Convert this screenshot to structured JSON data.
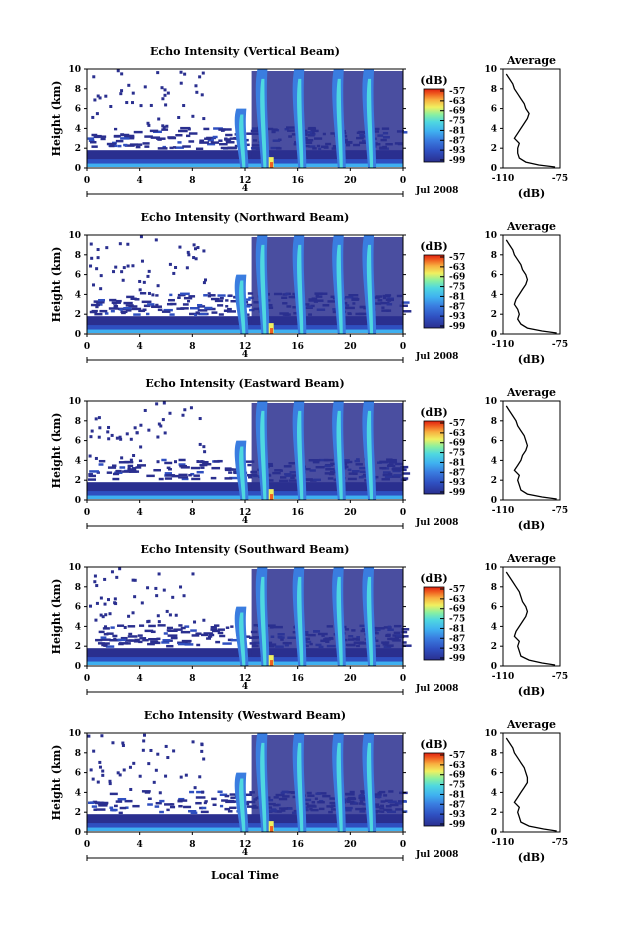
{
  "figure": {
    "xlabel": "Local Time",
    "colorbar_label": "(dB)",
    "colorbar_ticks": [
      "-57",
      "-63",
      "-69",
      "-75",
      "-81",
      "-87",
      "-93",
      "-99"
    ],
    "date_label": "Jul 2008",
    "date_axis_tick": "4",
    "profile_title": "Average",
    "profile_xlabel": "(dB)"
  },
  "chart_data": [
    {
      "type": "heatmap",
      "title": "Echo Intensity (Vertical Beam)",
      "ylabel": "Height (km)",
      "x_ticks": [
        "0",
        "4",
        "8",
        "12",
        "16",
        "20",
        "0"
      ],
      "y_ticks": [
        "0",
        "2",
        "4",
        "6",
        "8",
        "10"
      ],
      "xlim": [
        0,
        24
      ],
      "ylim": [
        0,
        10
      ],
      "colorscale": [
        "#2a2f8f",
        "#2f4fc0",
        "#3a7de0",
        "#3fb0f0",
        "#4fd8e0",
        "#8af0a0",
        "#f0f060",
        "#f8b040",
        "#f06020",
        "#e02010"
      ],
      "profile": {
        "title": "Average",
        "xlim": [
          -110,
          -75
        ],
        "xticks": [
          "-110",
          "-75"
        ],
        "ylim": [
          0,
          10
        ],
        "yticks": [
          "0",
          "2",
          "4",
          "6",
          "8",
          "10"
        ],
        "heights": [
          0.1,
          0.3,
          0.6,
          1,
          1.5,
          2,
          2.5,
          3,
          3.5,
          4,
          4.5,
          5,
          5.5,
          6,
          6.5,
          7,
          7.5,
          8,
          8.5,
          9,
          9.5
        ],
        "values": [
          -78,
          -88,
          -96,
          -100,
          -101,
          -101,
          -100,
          -103,
          -101,
          -99,
          -97,
          -95,
          -94,
          -96,
          -97,
          -99,
          -101,
          -103,
          -104,
          -106,
          -108
        ]
      }
    },
    {
      "type": "heatmap",
      "title": "Echo Intensity (Northward Beam)",
      "ylabel": "Height (km)",
      "x_ticks": [
        "0",
        "4",
        "8",
        "12",
        "16",
        "20",
        "0"
      ],
      "y_ticks": [
        "0",
        "2",
        "4",
        "6",
        "8",
        "10"
      ],
      "xlim": [
        0,
        24
      ],
      "ylim": [
        0,
        10
      ],
      "profile": {
        "title": "Average",
        "xlim": [
          -110,
          -75
        ],
        "xticks": [
          "-110",
          "-75"
        ],
        "ylim": [
          0,
          10
        ],
        "yticks": [
          "0",
          "2",
          "4",
          "6",
          "8",
          "10"
        ],
        "heights": [
          0.1,
          0.3,
          0.6,
          1,
          1.5,
          2,
          2.5,
          3,
          3.5,
          4,
          4.5,
          5,
          5.5,
          6,
          6.5,
          7,
          7.5,
          8,
          8.5,
          9,
          9.5
        ],
        "values": [
          -77,
          -86,
          -95,
          -99,
          -101,
          -100,
          -101,
          -103,
          -102,
          -100,
          -98,
          -96,
          -95,
          -96,
          -98,
          -99,
          -101,
          -103,
          -104,
          -106,
          -108
        ]
      }
    },
    {
      "type": "heatmap",
      "title": "Echo Intensity (Eastward Beam)",
      "ylabel": "Height (km)",
      "x_ticks": [
        "0",
        "4",
        "8",
        "12",
        "16",
        "20",
        "0"
      ],
      "y_ticks": [
        "0",
        "2",
        "4",
        "6",
        "8",
        "10"
      ],
      "xlim": [
        0,
        24
      ],
      "ylim": [
        0,
        10
      ],
      "profile": {
        "title": "Average",
        "xlim": [
          -110,
          -75
        ],
        "xticks": [
          "-110",
          "-75"
        ],
        "ylim": [
          0,
          10
        ],
        "yticks": [
          "0",
          "2",
          "4",
          "6",
          "8",
          "10"
        ],
        "heights": [
          0.1,
          0.3,
          0.6,
          1,
          1.5,
          2,
          2.5,
          3,
          3.5,
          4,
          4.5,
          5,
          5.5,
          6,
          6.5,
          7,
          7.5,
          8,
          8.5,
          9,
          9.5
        ],
        "values": [
          -77,
          -86,
          -95,
          -99,
          -100,
          -101,
          -100,
          -103,
          -101,
          -99,
          -98,
          -96,
          -95,
          -96,
          -97,
          -99,
          -101,
          -102,
          -104,
          -106,
          -108
        ]
      }
    },
    {
      "type": "heatmap",
      "title": "Echo Intensity (Southward Beam)",
      "ylabel": "Height (km)",
      "x_ticks": [
        "0",
        "4",
        "8",
        "12",
        "16",
        "20",
        "0"
      ],
      "y_ticks": [
        "0",
        "2",
        "4",
        "6",
        "8",
        "10"
      ],
      "xlim": [
        0,
        24
      ],
      "ylim": [
        0,
        10
      ],
      "profile": {
        "title": "Average",
        "xlim": [
          -110,
          -75
        ],
        "xticks": [
          "-110",
          "-75"
        ],
        "ylim": [
          0,
          10
        ],
        "yticks": [
          "0",
          "2",
          "4",
          "6",
          "8",
          "10"
        ],
        "heights": [
          0.1,
          0.3,
          0.6,
          1,
          1.5,
          2,
          2.5,
          3,
          3.5,
          4,
          4.5,
          5,
          5.5,
          6,
          6.5,
          7,
          7.5,
          8,
          8.5,
          9,
          9.5
        ],
        "values": [
          -78,
          -86,
          -94,
          -99,
          -100,
          -101,
          -100,
          -103,
          -102,
          -100,
          -98,
          -96,
          -95,
          -96,
          -98,
          -99,
          -100,
          -102,
          -104,
          -106,
          -108
        ]
      }
    },
    {
      "type": "heatmap",
      "title": "Echo Intensity (Westward Beam)",
      "ylabel": "Height (km)",
      "x_ticks": [
        "0",
        "4",
        "8",
        "12",
        "16",
        "20",
        "0"
      ],
      "y_ticks": [
        "0",
        "2",
        "4",
        "6",
        "8",
        "10"
      ],
      "xlim": [
        0,
        24
      ],
      "ylim": [
        0,
        10
      ],
      "profile": {
        "title": "Average",
        "xlim": [
          -110,
          -75
        ],
        "xticks": [
          "-110",
          "-75"
        ],
        "ylim": [
          0,
          10
        ],
        "yticks": [
          "0",
          "2",
          "4",
          "6",
          "8",
          "10"
        ],
        "heights": [
          0.1,
          0.3,
          0.6,
          1,
          1.5,
          2,
          2.5,
          3,
          3.5,
          4,
          4.5,
          5,
          5.5,
          6,
          6.5,
          7,
          7.5,
          8,
          8.5,
          9,
          9.5
        ],
        "values": [
          -77,
          -85,
          -94,
          -99,
          -100,
          -101,
          -100,
          -103,
          -101,
          -99,
          -97,
          -95,
          -95,
          -96,
          -97,
          -99,
          -101,
          -103,
          -104,
          -106,
          -108
        ]
      }
    }
  ]
}
